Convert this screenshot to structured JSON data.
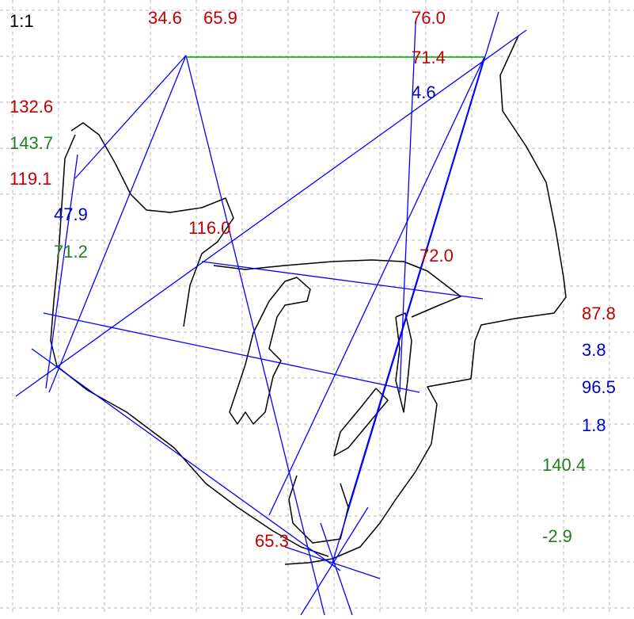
{
  "scale": {
    "text": "1:1",
    "color": "#000000"
  },
  "labels": [
    {
      "text": "34.6",
      "color": "#c00000"
    },
    {
      "text": "65.9",
      "color": "#c00000"
    },
    {
      "text": "76.0",
      "color": "#c00000"
    },
    {
      "text": "71.4",
      "color": "#c00000"
    },
    {
      "text": "4.6",
      "color": "#0000c0"
    },
    {
      "text": "132.6",
      "color": "#c00000"
    },
    {
      "text": "143.7",
      "color": "#208020"
    },
    {
      "text": "119.1",
      "color": "#c00000"
    },
    {
      "text": "47.9",
      "color": "#0000c0"
    },
    {
      "text": "71.2",
      "color": "#208020"
    },
    {
      "text": "116.0",
      "color": "#c00000"
    },
    {
      "text": "72.0",
      "color": "#c00000"
    },
    {
      "text": "87.8",
      "color": "#c00000"
    },
    {
      "text": "3.8",
      "color": "#0000c0"
    },
    {
      "text": "96.5",
      "color": "#0000c0"
    },
    {
      "text": "1.8",
      "color": "#0000c0"
    },
    {
      "text": "140.4",
      "color": "#208020"
    },
    {
      "text": "-2.9",
      "color": "#208020"
    },
    {
      "text": "65.3",
      "color": "#c00000"
    }
  ]
}
